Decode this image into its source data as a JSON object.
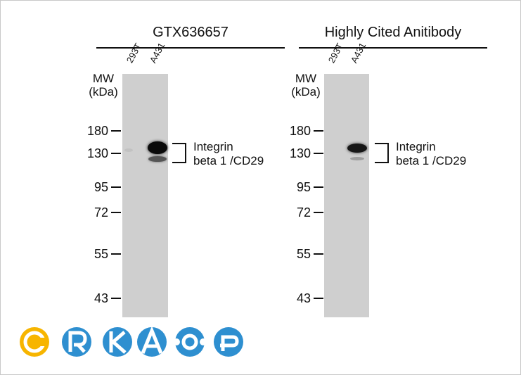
{
  "panels": [
    {
      "title": "GTX636657",
      "lanes": [
        "293T",
        "A431"
      ],
      "mw_label": [
        "MW",
        "(kDa)"
      ],
      "markers": [
        "180",
        "130",
        "95",
        "72",
        "55",
        "43"
      ],
      "target": [
        "Integrin",
        "beta 1 /CD29"
      ]
    },
    {
      "title": "Highly Cited Anitibody",
      "lanes": [
        "293T",
        "A431"
      ],
      "mw_label": [
        "MW",
        "(kDa)"
      ],
      "markers": [
        "180",
        "130",
        "95",
        "72",
        "55",
        "43"
      ],
      "target": [
        "Integrin",
        "beta 1 /CD29"
      ]
    }
  ],
  "logo": {
    "letters": [
      "C",
      "R",
      "K",
      "A",
      "",
      ""
    ],
    "colors": [
      "#f7b500",
      "#2e8fd0",
      "#2e8fd0",
      "#2e8fd0",
      "#2e8fd0",
      "#2e8fd0"
    ]
  }
}
